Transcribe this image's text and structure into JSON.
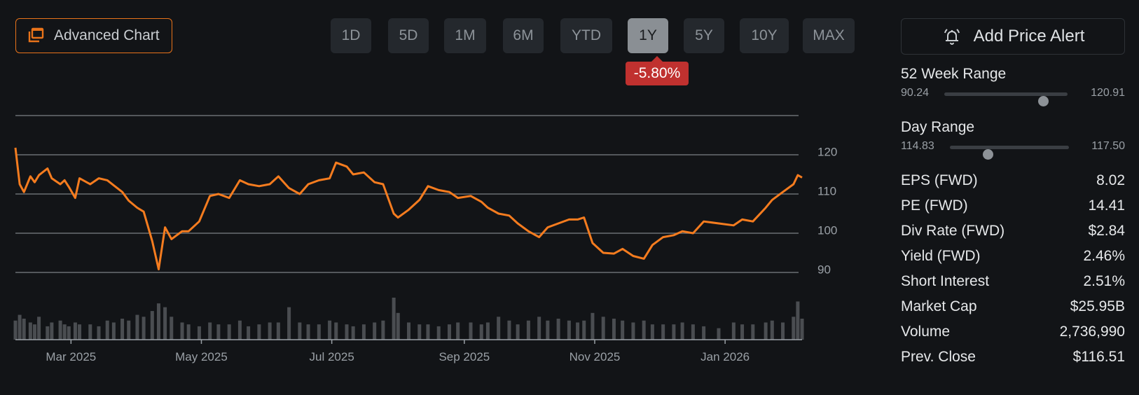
{
  "toolbar": {
    "advanced_chart_label": "Advanced Chart",
    "ranges": [
      "1D",
      "5D",
      "1M",
      "6M",
      "YTD",
      "1Y",
      "5Y",
      "10Y",
      "MAX"
    ],
    "active_range": "1Y",
    "change_badge": "-5.80%",
    "add_alert_label": "Add Price Alert"
  },
  "colors": {
    "line": "#f57c1f",
    "accent": "#e8731a",
    "negative": "#c0312f",
    "volume": "#4a4d51",
    "grid": "#6a6e73"
  },
  "stats": {
    "week52": {
      "title": "52 Week Range",
      "low": "90.24",
      "high": "120.91",
      "position": 0.8
    },
    "day": {
      "title": "Day Range",
      "low": "114.83",
      "high": "117.50",
      "position": 0.32
    },
    "rows": [
      {
        "label": "EPS (FWD)",
        "value": "8.02"
      },
      {
        "label": "PE (FWD)",
        "value": "14.41"
      },
      {
        "label": "Div Rate (FWD)",
        "value": "$2.84"
      },
      {
        "label": "Yield (FWD)",
        "value": "2.46%"
      },
      {
        "label": "Short Interest",
        "value": "2.51%"
      },
      {
        "label": "Market Cap",
        "value": "$25.95B"
      },
      {
        "label": "Volume",
        "value": "2,736,990"
      },
      {
        "label": "Prev. Close",
        "value": "$116.51"
      }
    ]
  },
  "chart_data": {
    "type": "line",
    "title": "",
    "xlabel": "",
    "ylabel": "",
    "ylim": [
      85,
      130
    ],
    "y_ticks": [
      90,
      100,
      110,
      120
    ],
    "x_ticks": [
      "Mar 2025",
      "May 2025",
      "Jul 2025",
      "Sep 2025",
      "Nov 2025",
      "Jan 2026"
    ],
    "x_tick_dates": [
      "2025-03-01",
      "2025-05-01",
      "2025-07-01",
      "2025-09-01",
      "2025-11-01",
      "2026-01-01"
    ],
    "x_range": [
      "2025-02-03",
      "2026-02-06"
    ],
    "series": [
      {
        "x": [
          "2025-02-03",
          "2025-02-05",
          "2025-02-07",
          "2025-02-10",
          "2025-02-12",
          "2025-02-14",
          "2025-02-18",
          "2025-02-20",
          "2025-02-24",
          "2025-02-26",
          "2025-02-28",
          "2025-03-03",
          "2025-03-05",
          "2025-03-10",
          "2025-03-14",
          "2025-03-18",
          "2025-03-21",
          "2025-03-25",
          "2025-03-28",
          "2025-04-01",
          "2025-04-04",
          "2025-04-08",
          "2025-04-11",
          "2025-04-14",
          "2025-04-17",
          "2025-04-22",
          "2025-04-25",
          "2025-04-30",
          "2025-05-05",
          "2025-05-09",
          "2025-05-14",
          "2025-05-19",
          "2025-05-23",
          "2025-05-28",
          "2025-06-02",
          "2025-06-06",
          "2025-06-11",
          "2025-06-16",
          "2025-06-20",
          "2025-06-25",
          "2025-06-30",
          "2025-07-03",
          "2025-07-08",
          "2025-07-11",
          "2025-07-16",
          "2025-07-21",
          "2025-07-25",
          "2025-07-30",
          "2025-08-01",
          "2025-08-06",
          "2025-08-11",
          "2025-08-15",
          "2025-08-20",
          "2025-08-25",
          "2025-08-29",
          "2025-09-04",
          "2025-09-09",
          "2025-09-12",
          "2025-09-17",
          "2025-09-22",
          "2025-09-26",
          "2025-10-01",
          "2025-10-06",
          "2025-10-10",
          "2025-10-15",
          "2025-10-20",
          "2025-10-24",
          "2025-10-27",
          "2025-10-31",
          "2025-11-05",
          "2025-11-10",
          "2025-11-14",
          "2025-11-19",
          "2025-11-24",
          "2025-11-28",
          "2025-12-03",
          "2025-12-08",
          "2025-12-12",
          "2025-12-17",
          "2025-12-22",
          "2025-12-29",
          "2026-01-05",
          "2026-01-09",
          "2026-01-14",
          "2026-01-20",
          "2026-01-23",
          "2026-01-28",
          "2026-02-02",
          "2026-02-04",
          "2026-02-06"
        ],
        "values": [
          121.8,
          112.5,
          110.5,
          114.5,
          113.0,
          114.8,
          116.5,
          114.0,
          112.5,
          113.5,
          111.8,
          109.0,
          114.0,
          112.5,
          114.0,
          113.5,
          112.2,
          110.5,
          108.3,
          106.5,
          105.5,
          98.0,
          90.8,
          101.5,
          98.5,
          100.5,
          100.5,
          103.0,
          109.5,
          110.0,
          109.0,
          113.5,
          112.5,
          112.0,
          112.5,
          114.5,
          111.5,
          110.0,
          112.5,
          113.5,
          114.0,
          118.0,
          117.0,
          115.0,
          115.5,
          113.0,
          112.5,
          105.0,
          104.0,
          106.0,
          108.5,
          112.0,
          111.0,
          110.5,
          109.0,
          109.5,
          108.0,
          106.5,
          105.0,
          104.5,
          102.5,
          100.5,
          99.0,
          101.5,
          102.5,
          103.5,
          103.5,
          104.0,
          97.5,
          95.0,
          94.8,
          96.0,
          94.2,
          93.5,
          97.0,
          99.0,
          99.5,
          100.5,
          100.0,
          103.0,
          102.5,
          102.0,
          103.5,
          103.0,
          106.5,
          108.5,
          110.5,
          112.5,
          114.8,
          114.2
        ]
      }
    ],
    "volume": [
      1.0,
      1.3,
      1.1,
      0.9,
      0.8,
      1.2,
      0.7,
      0.9,
      1.0,
      0.8,
      0.7,
      0.9,
      0.8,
      0.8,
      0.7,
      1.0,
      0.9,
      1.1,
      1.0,
      1.3,
      1.2,
      1.5,
      1.9,
      1.7,
      1.2,
      0.9,
      0.8,
      0.7,
      0.9,
      0.8,
      0.8,
      1.0,
      0.7,
      0.8,
      0.9,
      0.9,
      1.7,
      0.9,
      0.8,
      0.8,
      1.0,
      0.9,
      0.8,
      0.7,
      0.8,
      0.9,
      1.0,
      2.2,
      1.4,
      0.9,
      0.8,
      0.8,
      0.7,
      0.8,
      0.9,
      0.9,
      0.8,
      0.9,
      1.2,
      1.0,
      0.8,
      1.0,
      1.2,
      1.0,
      1.1,
      1.0,
      0.9,
      1.0,
      1.4,
      1.2,
      1.1,
      1.0,
      0.9,
      1.0,
      0.8,
      0.8,
      0.8,
      0.9,
      0.8,
      0.7,
      0.6,
      0.9,
      0.8,
      0.8,
      0.9,
      1.0,
      0.9,
      1.2,
      2.0,
      1.1
    ],
    "volume_unit": "relative"
  }
}
